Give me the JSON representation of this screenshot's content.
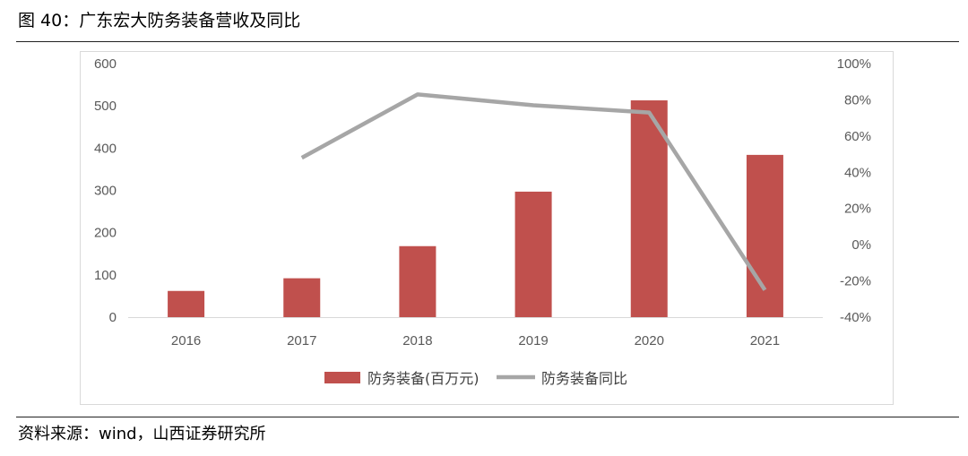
{
  "figure": {
    "title": "图 40：广东宏大防务装备营收及同比",
    "source": "资料来源：wind，山西证券研究所"
  },
  "colors": {
    "bar": "#C0504D",
    "line": "#A6A6A6",
    "axis": "#d9d9d9",
    "tick_text": "#595959"
  },
  "chart_data": {
    "type": "bar",
    "categories": [
      "2016",
      "2017",
      "2018",
      "2019",
      "2020",
      "2021"
    ],
    "series": [
      {
        "name": "防务装备(百万元)",
        "type": "bar",
        "axis": "left",
        "values": [
          62,
          92,
          168,
          297,
          513,
          384
        ]
      },
      {
        "name": "防务装备同比",
        "type": "line",
        "axis": "right",
        "values": [
          null,
          48,
          83,
          77,
          73,
          -25
        ]
      }
    ],
    "y_left": {
      "min": 0,
      "max": 600,
      "ticks": [
        "0",
        "100",
        "200",
        "300",
        "400",
        "500",
        "600"
      ]
    },
    "y_right": {
      "min": -40,
      "max": 100,
      "ticks": [
        "-40%",
        "-20%",
        "0%",
        "20%",
        "40%",
        "60%",
        "80%",
        "100%"
      ]
    },
    "grid": false,
    "legend": "bottom"
  }
}
